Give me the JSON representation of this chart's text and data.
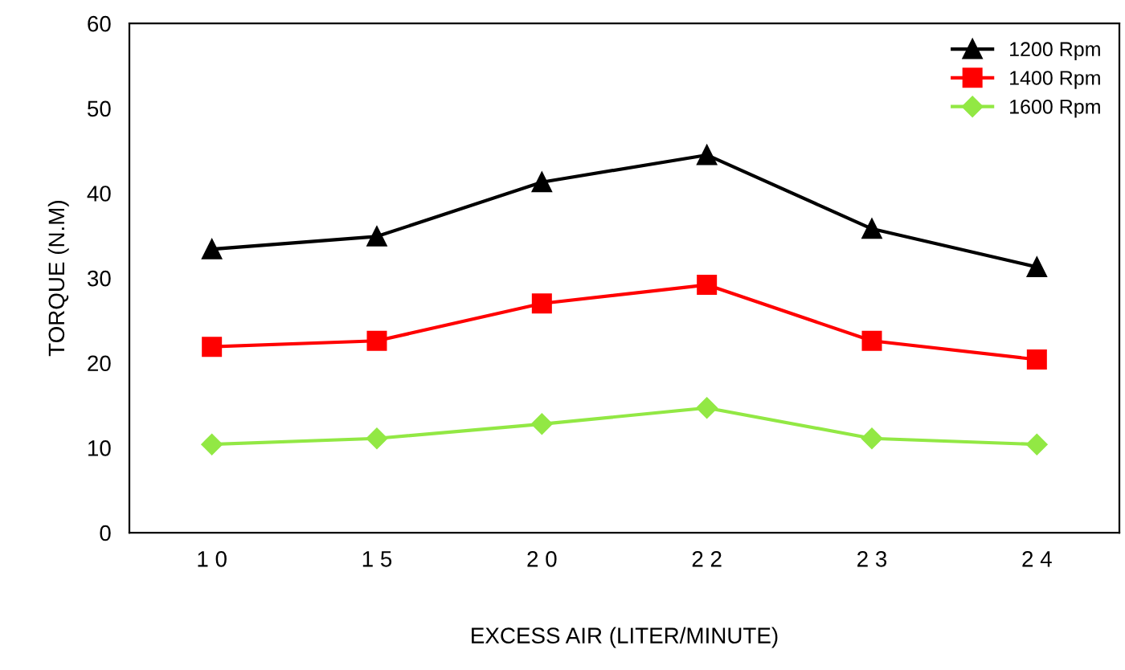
{
  "chart_data": {
    "type": "line",
    "xlabel": "EXCESS AIR (LITER/MINUTE)",
    "ylabel": "TORQUE (N.M)",
    "categories": [
      "1 0",
      "1 5",
      "2 0",
      "2 2",
      "2 3",
      "2 4"
    ],
    "series": [
      {
        "name": "1200 Rpm",
        "color": "#000000",
        "marker": "triangle",
        "values": [
          33.4,
          34.9,
          41.3,
          44.5,
          35.8,
          31.3
        ]
      },
      {
        "name": "1400 Rpm",
        "color": "#ff0000",
        "marker": "square",
        "values": [
          21.9,
          22.6,
          27.0,
          29.2,
          22.6,
          20.4
        ]
      },
      {
        "name": "1600 Rpm",
        "color": "#92e844",
        "marker": "diamond",
        "values": [
          10.4,
          11.1,
          12.8,
          14.7,
          11.1,
          10.4
        ]
      }
    ],
    "ylim": [
      0,
      60
    ],
    "yticks": [
      0,
      10,
      20,
      30,
      40,
      50,
      60
    ],
    "grid": false,
    "legend": "top right",
    "line_style": "solid"
  }
}
